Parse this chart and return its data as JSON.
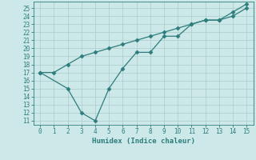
{
  "line1_x": [
    0,
    1,
    2,
    3,
    4,
    5,
    6,
    7,
    8,
    9,
    10,
    11,
    12,
    13,
    14,
    15
  ],
  "line1_y": [
    17.0,
    17.0,
    18.0,
    19.0,
    19.5,
    20.0,
    20.5,
    21.0,
    21.5,
    22.0,
    22.5,
    23.0,
    23.5,
    23.5,
    24.0,
    25.0
  ],
  "line2_x": [
    0,
    2,
    3,
    4,
    5,
    6,
    7,
    8,
    9,
    10,
    11,
    12,
    13,
    14,
    15
  ],
  "line2_y": [
    17.0,
    15.0,
    12.0,
    11.0,
    15.0,
    17.5,
    19.5,
    19.5,
    21.5,
    21.5,
    23.0,
    23.5,
    23.5,
    24.5,
    25.5
  ],
  "line_color": "#2e7d7d",
  "bg_color": "#cce8e8",
  "grid_color": "#b0d8d8",
  "xlabel": "Humidex (Indice chaleur)",
  "xlim": [
    -0.5,
    15.5
  ],
  "ylim": [
    10.5,
    25.8
  ],
  "xticks": [
    0,
    1,
    2,
    3,
    4,
    5,
    6,
    7,
    8,
    9,
    10,
    11,
    12,
    13,
    14,
    15
  ],
  "yticks": [
    11,
    12,
    13,
    14,
    15,
    16,
    17,
    18,
    19,
    20,
    21,
    22,
    23,
    24,
    25
  ],
  "marker": "D",
  "marker_size": 2.5,
  "linewidth": 0.9,
  "tick_fontsize": 5.5,
  "xlabel_fontsize": 6.5
}
